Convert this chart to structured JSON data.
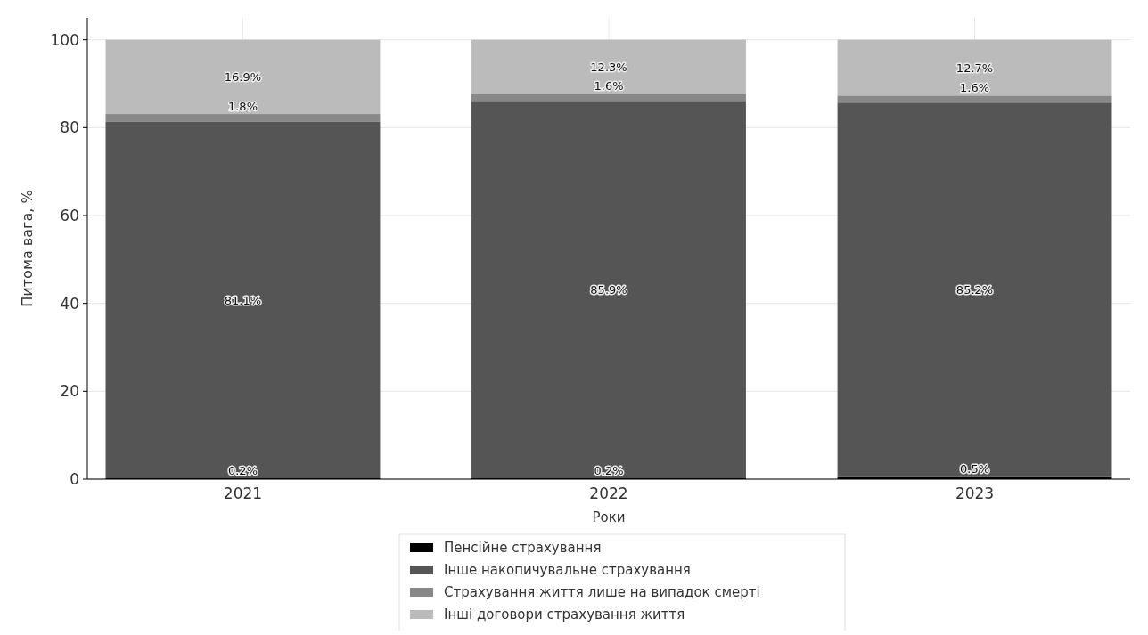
{
  "chart_data": {
    "type": "bar",
    "stacked": true,
    "categories": [
      "2021",
      "2022",
      "2023"
    ],
    "xlabel": "Роки",
    "ylabel": "Питома вага, %",
    "ylim": [
      0,
      105
    ],
    "yticks": [
      0,
      20,
      40,
      60,
      80,
      100
    ],
    "grid": true,
    "legend": "bottom",
    "series": [
      {
        "name": "Пенсійне страхування",
        "color": "#000000",
        "values": [
          0.2,
          0.2,
          0.5
        ],
        "value_labels": [
          "0.2%",
          "0.2%",
          "0.5%"
        ]
      },
      {
        "name": "Інше накопичувальне страхування",
        "color": "#555555",
        "values": [
          81.1,
          85.9,
          85.2
        ],
        "value_labels": [
          "81.1%",
          "85.9%",
          "85.2%"
        ]
      },
      {
        "name": "Страхування життя лише на випадок смерті",
        "color": "#888888",
        "values": [
          1.8,
          1.6,
          1.6
        ],
        "value_labels": [
          "1.8%",
          "1.6%",
          "1.6%"
        ]
      },
      {
        "name": "Інші договори страхування життя",
        "color": "#bbbbbb",
        "values": [
          16.9,
          12.3,
          12.7
        ],
        "value_labels": [
          "16.9%",
          "12.3%",
          "12.7%"
        ]
      }
    ]
  }
}
